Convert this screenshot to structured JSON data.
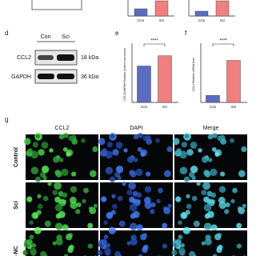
{
  "top_charts": [
    {
      "categories": [
        "Con",
        "Sci"
      ],
      "values": [
        0.45,
        0.95
      ],
      "ylim": [
        0,
        1
      ],
      "colors": [
        "#5b6bc0",
        "#f07f7f"
      ]
    },
    {
      "categories": [
        "Con",
        "Sci"
      ],
      "values": [
        0.3,
        0.95
      ],
      "ylim": [
        0,
        1
      ],
      "colors": [
        "#5b6bc0",
        "#f07f7f"
      ]
    }
  ],
  "panel_d": {
    "label": "d",
    "lanes": [
      "Con",
      "Sci"
    ],
    "rows": [
      {
        "name": "CCL2",
        "size": "18 kDa"
      },
      {
        "name": "GAPDH",
        "size": "36 kDa"
      }
    ]
  },
  "panel_e": {
    "label": "e",
    "ylabel": "CCL2/GAPDH Relative protein expression",
    "categories": [
      "Con",
      "Sci"
    ],
    "values": [
      0.78,
      1.0
    ],
    "ylim": [
      0,
      1.2
    ],
    "colors": [
      "#5b6bc0",
      "#f07f7f"
    ],
    "significance": "****"
  },
  "panel_f": {
    "label": "f",
    "ylabel": "CCL2 Relative mRNA level",
    "categories": [
      "Con",
      "Sci"
    ],
    "values": [
      1,
      6
    ],
    "ylim": [
      0,
      8
    ],
    "colors": [
      "#5b6bc0",
      "#f07f7f"
    ],
    "significance": "****"
  },
  "panel_g": {
    "label": "g",
    "columns": [
      "CCL2",
      "DAPI",
      "Merge"
    ],
    "rows": [
      "Control",
      "Sci",
      "si-NC"
    ]
  }
}
